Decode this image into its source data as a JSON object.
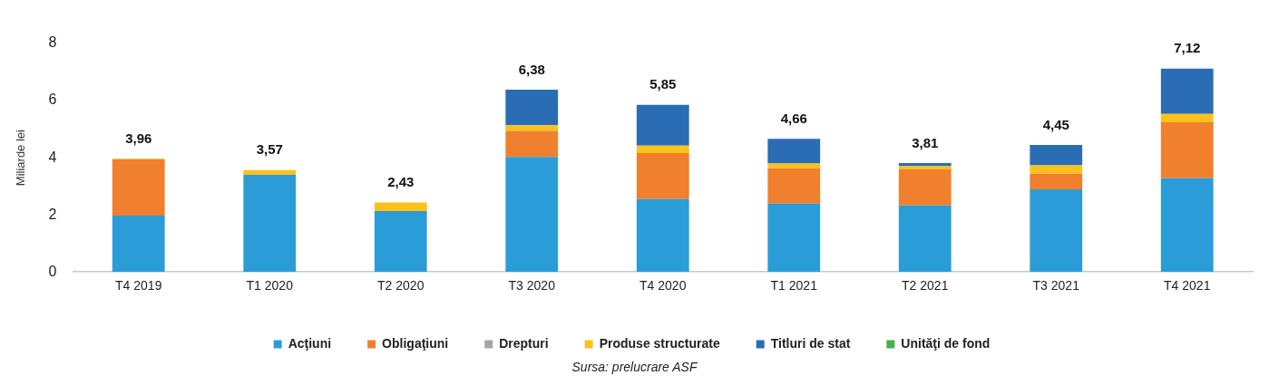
{
  "chart_data": {
    "type": "bar",
    "stacked": true,
    "ylabel": "Miliarde lei",
    "ylim": [
      0,
      8
    ],
    "yticks": [
      0,
      2,
      4,
      6,
      8
    ],
    "grid": false,
    "legend": "bottom",
    "categories": [
      "T4 2019",
      "T1 2020",
      "T2 2020",
      "T3 2020",
      "T4 2020",
      "T1 2021",
      "T2 2021",
      "T3 2021",
      "T4 2021"
    ],
    "series": [
      {
        "name": "Acţiuni",
        "color": "#2a9dd8",
        "values": [
          1.97,
          3.4,
          2.13,
          4.03,
          2.55,
          2.39,
          2.33,
          2.89,
          3.28
        ]
      },
      {
        "name": "Obligaţiuni",
        "color": "#f07f2e",
        "values": [
          1.97,
          0,
          0,
          0.91,
          1.61,
          1.24,
          1.26,
          0.55,
          1.96
        ]
      },
      {
        "name": "Drepturi",
        "color": "#a5a5a5",
        "values": [
          0,
          0,
          0,
          0,
          0,
          0,
          0,
          0,
          0
        ]
      },
      {
        "name": "Produse structurate",
        "color": "#fcc11a",
        "values": [
          0.02,
          0.17,
          0.3,
          0.2,
          0.26,
          0.17,
          0.11,
          0.29,
          0.29
        ]
      },
      {
        "name": "Titluri de stat",
        "color": "#2b6db4",
        "values": [
          0,
          0,
          0,
          1.24,
          1.43,
          0.86,
          0.11,
          0.72,
          1.59
        ]
      },
      {
        "name": "Unităţi de fond",
        "color": "#4caf50",
        "values": [
          0,
          0,
          0,
          0,
          0,
          0,
          0,
          0,
          0
        ]
      }
    ],
    "totals": [
      "3,96",
      "3,57",
      "2,43",
      "6,38",
      "5,85",
      "4,66",
      "3,81",
      "4,45",
      "7,12"
    ],
    "annotations": [
      "Sursa: prelucrare ASF"
    ]
  }
}
